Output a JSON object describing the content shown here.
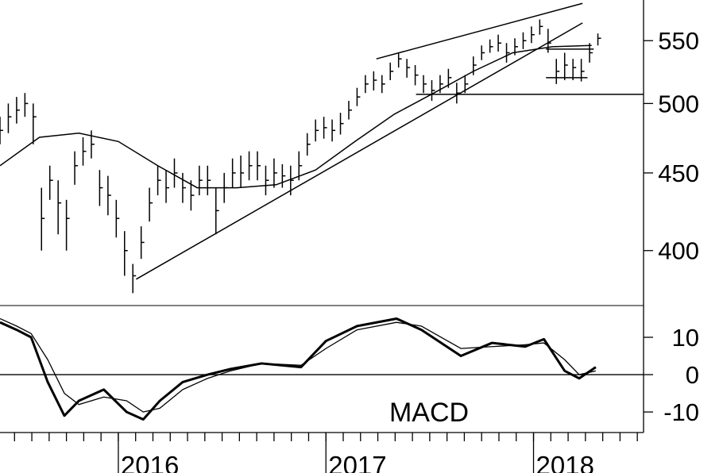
{
  "chart_data": [
    {
      "type": "hilo",
      "log": true,
      "xlim": [
        2015.43,
        2018.53
      ],
      "xticks": [
        2016,
        2017,
        2018
      ],
      "ylim": [
        368,
        585
      ],
      "yticks": [
        400,
        450,
        500,
        550
      ],
      "color": "#000000",
      "x": [
        2015.43,
        2015.47,
        2015.51,
        2015.55,
        2015.59,
        2015.63,
        2015.67,
        2015.71,
        2015.75,
        2015.79,
        2015.83,
        2015.87,
        2015.91,
        2015.95,
        2015.99,
        2016.03,
        2016.07,
        2016.11,
        2016.15,
        2016.19,
        2016.23,
        2016.27,
        2016.31,
        2016.35,
        2016.39,
        2016.43,
        2016.47,
        2016.51,
        2016.55,
        2016.59,
        2016.63,
        2016.67,
        2016.71,
        2016.75,
        2016.79,
        2016.83,
        2016.87,
        2016.91,
        2016.95,
        2016.99,
        2017.03,
        2017.07,
        2017.11,
        2017.15,
        2017.19,
        2017.23,
        2017.27,
        2017.31,
        2017.35,
        2017.39,
        2017.43,
        2017.47,
        2017.51,
        2017.55,
        2017.59,
        2017.63,
        2017.67,
        2017.71,
        2017.75,
        2017.79,
        2017.83,
        2017.87,
        2017.91,
        2017.95,
        2017.99,
        2018.03,
        2018.07,
        2018.11,
        2018.15,
        2018.19,
        2018.23,
        2018.27,
        2018.31
      ],
      "high": [
        490,
        500,
        505,
        508,
        500,
        440,
        455,
        445,
        432,
        465,
        475,
        480,
        452,
        448,
        432,
        412,
        392,
        415,
        440,
        455,
        452,
        460,
        450,
        445,
        455,
        455,
        440,
        450,
        460,
        462,
        465,
        465,
        455,
        460,
        456,
        455,
        465,
        478,
        488,
        490,
        488,
        493,
        502,
        512,
        522,
        525,
        522,
        532,
        540,
        535,
        530,
        522,
        518,
        522,
        527,
        516,
        522,
        537,
        546,
        551,
        555,
        548,
        552,
        557,
        562,
        568,
        560,
        535,
        540,
        535,
        535,
        548,
        556
      ],
      "low": [
        470,
        478,
        485,
        490,
        470,
        400,
        432,
        410,
        400,
        442,
        455,
        460,
        428,
        422,
        408,
        385,
        375,
        395,
        418,
        435,
        430,
        440,
        430,
        425,
        435,
        435,
        410,
        430,
        440,
        440,
        445,
        445,
        435,
        440,
        440,
        435,
        445,
        462,
        472,
        474,
        472,
        477,
        488,
        498,
        508,
        510,
        508,
        518,
        528,
        520,
        514,
        508,
        502,
        508,
        512,
        500,
        508,
        522,
        534,
        540,
        541,
        532,
        538,
        543,
        548,
        555,
        540,
        515,
        518,
        518,
        517,
        532,
        546
      ],
      "close": [
        480,
        490,
        495,
        500,
        490,
        420,
        445,
        430,
        420,
        455,
        465,
        470,
        440,
        435,
        420,
        400,
        385,
        405,
        430,
        445,
        440,
        450,
        440,
        435,
        445,
        445,
        425,
        440,
        450,
        450,
        455,
        455,
        445,
        450,
        448,
        445,
        455,
        470,
        480,
        482,
        480,
        485,
        495,
        505,
        515,
        518,
        515,
        525,
        535,
        528,
        522,
        515,
        510,
        515,
        520,
        508,
        515,
        530,
        540,
        545,
        548,
        540,
        545,
        550,
        555,
        562,
        548,
        525,
        530,
        528,
        525,
        540,
        552
      ],
      "moving_average": {
        "x": [
          2015.43,
          2015.62,
          2015.81,
          2016.0,
          2016.19,
          2016.38,
          2016.57,
          2016.76,
          2016.95,
          2017.14,
          2017.33,
          2017.52,
          2017.71,
          2017.9,
          2018.09,
          2018.28
        ],
        "values": [
          455,
          475,
          478,
          472,
          455,
          440,
          440,
          442,
          452,
          472,
          492,
          508,
          525,
          540,
          545,
          546
        ]
      },
      "trendlines": [
        {
          "x": [
            2016.086,
            2018.236
          ],
          "values": [
            383,
            565
          ]
        },
        {
          "x": [
            2017.243,
            2018.236
          ],
          "values": [
            535,
            582
          ]
        },
        {
          "x": [
            2017.434,
            2018.53
          ],
          "values": [
            507,
            507
          ]
        },
        {
          "x": [
            2018.06,
            2018.29
          ],
          "values": [
            543,
            543
          ]
        },
        {
          "x": [
            2018.06,
            2018.26
          ],
          "values": [
            520,
            520
          ]
        }
      ]
    },
    {
      "type": "line",
      "annotation": "MACD",
      "xlim": [
        2015.43,
        2018.53
      ],
      "ylim": [
        -15.5,
        18.5
      ],
      "yticks": [
        -10,
        0,
        10
      ],
      "hline": 0,
      "x": [
        2015.43,
        2015.51,
        2015.58,
        2015.66,
        2015.74,
        2015.81,
        2015.93,
        2016.04,
        2016.12,
        2016.2,
        2016.31,
        2016.43,
        2016.54,
        2016.69,
        2016.88,
        2017.0,
        2017.15,
        2017.34,
        2017.46,
        2017.65,
        2017.8,
        2017.96,
        2018.05,
        2018.15,
        2018.22,
        2018.3
      ],
      "series": [
        {
          "color": "#000000",
          "width": 3,
          "values": [
            14,
            12,
            10,
            -2,
            -11,
            -7,
            -4,
            -10,
            -12,
            -7,
            -2,
            0,
            1.5,
            3,
            2,
            9,
            13,
            15,
            12,
            5,
            8.5,
            7.5,
            9.5,
            1,
            -1,
            2
          ]
        },
        {
          "color": "#000000",
          "width": 1.3,
          "values": [
            15,
            13,
            11,
            4,
            -5,
            -8,
            -6,
            -7,
            -10,
            -9,
            -4,
            -1,
            1,
            3,
            2.5,
            7,
            12,
            14,
            13,
            7,
            7.5,
            8,
            8.5,
            4,
            0,
            1
          ]
        }
      ]
    }
  ]
}
